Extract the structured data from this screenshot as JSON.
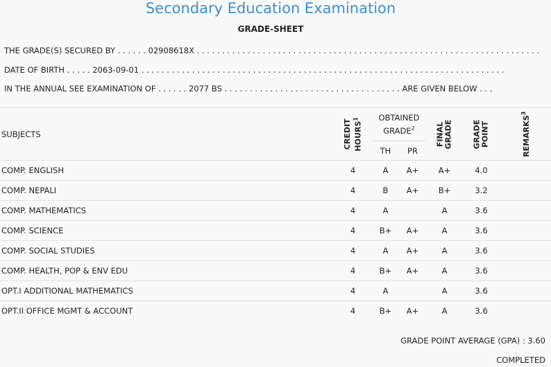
{
  "header": {
    "title": "Secondary Education Examination",
    "subtitle": "GRADE-SHEET"
  },
  "info": {
    "line1_label": "THE GRADE(S) SECURED BY",
    "line1_value": "02908618X",
    "line2_label": "DATE OF BIRTH",
    "line2_value": "2063-09-01",
    "line3_label": "IN THE ANNUAL SEE EXAMINATION OF",
    "line3_value": "2077 BS",
    "line3_suffix": "ARE GIVEN BELOW . . ."
  },
  "table": {
    "headers": {
      "subjects": "SUBJECTS",
      "credit_hours_1": "CREDIT",
      "credit_hours_2": "HOURS",
      "credit_sup": "1",
      "obtained_1": "OBTAINED",
      "obtained_2": "GRADE",
      "obtained_sup": "2",
      "th": "TH",
      "pr": "PR",
      "final_1": "FINAL",
      "final_2": "GRADE",
      "grade_point_1": "GRADE",
      "grade_point_2": "POINT",
      "remarks": "REMARKS",
      "remarks_sup": "3"
    },
    "rows": [
      {
        "subject": "COMP. ENGLISH",
        "credit": "4",
        "th": "A",
        "pr": "A+",
        "final": "A+",
        "gp": "4.0"
      },
      {
        "subject": "COMP. NEPALI",
        "credit": "4",
        "th": "B",
        "pr": "A+",
        "final": "B+",
        "gp": "3.2"
      },
      {
        "subject": "COMP. MATHEMATICS",
        "credit": "4",
        "th": "A",
        "pr": "",
        "final": "A",
        "gp": "3.6"
      },
      {
        "subject": "COMP. SCIENCE",
        "credit": "4",
        "th": "B+",
        "pr": "A+",
        "final": "A",
        "gp": "3.6"
      },
      {
        "subject": "COMP. SOCIAL STUDIES",
        "credit": "4",
        "th": "A",
        "pr": "A+",
        "final": "A",
        "gp": "3.6"
      },
      {
        "subject": "COMP. HEALTH, POP & ENV EDU",
        "credit": "4",
        "th": "B+",
        "pr": "A+",
        "final": "A",
        "gp": "3.6"
      },
      {
        "subject": "OPT.I ADDITIONAL MATHEMATICS",
        "credit": "4",
        "th": "A",
        "pr": "",
        "final": "A",
        "gp": "3.6"
      },
      {
        "subject": "OPT.II OFFICE MGMT & ACCOUNT",
        "credit": "4",
        "th": "B+",
        "pr": "A+",
        "final": "A",
        "gp": "3.6"
      }
    ]
  },
  "footer": {
    "gpa_label": "GRADE POINT AVERAGE (GPA) :",
    "gpa_value": "3.60",
    "status": "COMPLETED"
  }
}
